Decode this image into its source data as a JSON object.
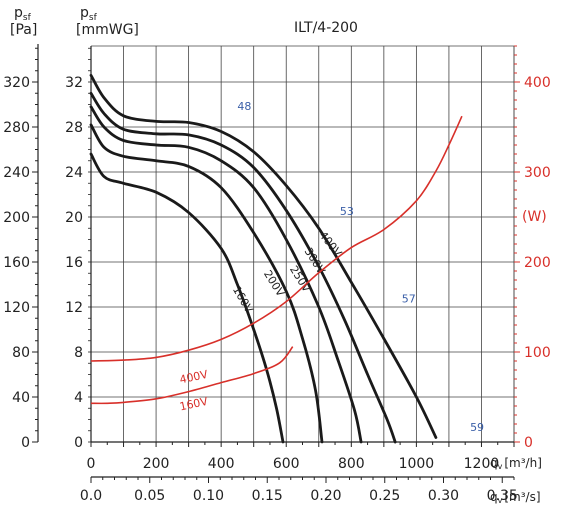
{
  "chart_data": {
    "type": "line",
    "title": "ILT/4-200",
    "left_axes": {
      "pa": {
        "label_main": "p",
        "label_sub": "sf",
        "unit": "[Pa]",
        "ticks": [
          0,
          40,
          80,
          120,
          160,
          200,
          240,
          280,
          320
        ],
        "range": [
          0,
          352
        ]
      },
      "mmwg": {
        "label_main": "p",
        "label_sub": "sf",
        "unit": "[mmWG]",
        "ticks": [
          0,
          4,
          8,
          12,
          16,
          20,
          24,
          28,
          32
        ],
        "range": [
          0,
          35.2
        ]
      }
    },
    "bottom_axes": {
      "m3h": {
        "label_main": "q",
        "label_sub": "v",
        "unit": "[m³/h]",
        "ticks": [
          0,
          200,
          400,
          600,
          800,
          1000,
          1200
        ],
        "range": [
          0,
          1300
        ]
      },
      "m3s": {
        "label_main": "q",
        "label_sub": "v",
        "unit": "[m³/s]",
        "ticks": [
          "0.0",
          "0.05",
          "0.10",
          "0.15",
          "0.20",
          "0.25",
          "0.30",
          "0.35"
        ],
        "range": [
          0,
          0.36
        ]
      }
    },
    "right_axis": {
      "label": "(W)",
      "ticks": [
        0,
        100,
        200,
        300,
        400
      ],
      "range": [
        0,
        440
      ]
    },
    "pressure_series": [
      {
        "name": "400V",
        "points": [
          [
            0,
            326
          ],
          [
            40,
            306
          ],
          [
            100,
            290
          ],
          [
            200,
            285
          ],
          [
            300,
            284
          ],
          [
            400,
            276
          ],
          [
            500,
            258
          ],
          [
            600,
            228
          ],
          [
            700,
            190
          ],
          [
            800,
            142
          ],
          [
            900,
            92
          ],
          [
            1000,
            40
          ],
          [
            1060,
            4
          ]
        ]
      },
      {
        "name": "300V",
        "points": [
          [
            0,
            310
          ],
          [
            40,
            292
          ],
          [
            100,
            278
          ],
          [
            200,
            274
          ],
          [
            300,
            273
          ],
          [
            400,
            264
          ],
          [
            500,
            244
          ],
          [
            600,
            206
          ],
          [
            700,
            156
          ],
          [
            780,
            108
          ],
          [
            850,
            60
          ],
          [
            910,
            20
          ],
          [
            935,
            0
          ]
        ]
      },
      {
        "name": "250V",
        "points": [
          [
            0,
            298
          ],
          [
            40,
            280
          ],
          [
            100,
            268
          ],
          [
            200,
            264
          ],
          [
            300,
            262
          ],
          [
            400,
            250
          ],
          [
            500,
            226
          ],
          [
            600,
            180
          ],
          [
            700,
            120
          ],
          [
            760,
            72
          ],
          [
            810,
            28
          ],
          [
            830,
            0
          ]
        ]
      },
      {
        "name": "200V",
        "points": [
          [
            0,
            282
          ],
          [
            40,
            262
          ],
          [
            100,
            254
          ],
          [
            200,
            250
          ],
          [
            300,
            245
          ],
          [
            400,
            226
          ],
          [
            500,
            186
          ],
          [
            600,
            134
          ],
          [
            650,
            92
          ],
          [
            690,
            46
          ],
          [
            710,
            0
          ]
        ]
      },
      {
        "name": "160V",
        "points": [
          [
            0,
            256
          ],
          [
            40,
            236
          ],
          [
            100,
            230
          ],
          [
            200,
            222
          ],
          [
            300,
            204
          ],
          [
            400,
            172
          ],
          [
            450,
            140
          ],
          [
            500,
            100
          ],
          [
            540,
            64
          ],
          [
            570,
            30
          ],
          [
            590,
            0
          ]
        ]
      }
    ],
    "power_series": [
      {
        "name": "400V",
        "points": [
          [
            0,
            90
          ],
          [
            100,
            91
          ],
          [
            200,
            94
          ],
          [
            300,
            102
          ],
          [
            400,
            114
          ],
          [
            500,
            132
          ],
          [
            600,
            156
          ],
          [
            700,
            188
          ],
          [
            800,
            216
          ],
          [
            900,
            236
          ],
          [
            1000,
            268
          ],
          [
            1060,
            301
          ],
          [
            1100,
            330
          ],
          [
            1140,
            362
          ]
        ]
      },
      {
        "name": "160V",
        "points": [
          [
            0,
            43
          ],
          [
            50,
            43
          ],
          [
            100,
            44
          ],
          [
            200,
            48
          ],
          [
            300,
            56
          ],
          [
            400,
            66
          ],
          [
            500,
            76
          ],
          [
            580,
            88
          ],
          [
            620,
            106
          ]
        ]
      }
    ],
    "efficiency_labels": [
      {
        "label": "48",
        "x": 450,
        "y": 295
      },
      {
        "label": "53",
        "x": 765,
        "y": 202
      },
      {
        "label": "57",
        "x": 955,
        "y": 124
      },
      {
        "label": "59",
        "x": 1165,
        "y": 10
      }
    ],
    "grid": true
  }
}
